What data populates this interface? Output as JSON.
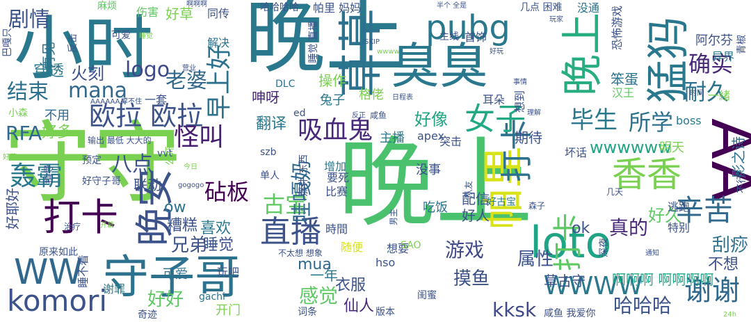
{
  "words": [
    {
      "text": "晚上",
      "color": "#2a788e",
      "vertical": false
    },
    {
      "text": "晚上",
      "color": "#4ac16d",
      "vertical": true
    },
    {
      "text": "小时",
      "color": "#2a788e",
      "vertical": false
    },
    {
      "text": "守守",
      "color": "#7ad151",
      "vertical": false
    },
    {
      "text": "AA",
      "color": "#440154",
      "vertical": true
    },
    {
      "text": "草草",
      "color": "#2c728e",
      "vertical": true
    },
    {
      "text": "臭臭",
      "color": "#2a788e",
      "vertical": false
    },
    {
      "text": "猛犸",
      "color": "#2a788e",
      "vertical": true
    },
    {
      "text": "晚上",
      "color": "#27ad81",
      "vertical": true
    },
    {
      "text": "守子哥",
      "color": "#2c728e",
      "vertical": false
    },
    {
      "text": "loto",
      "color": "#20a486",
      "vertical": false
    },
    {
      "text": "帕里",
      "color": "#d8e219",
      "vertical": true
    },
    {
      "text": "晚安",
      "color": "#3b528b",
      "vertical": true
    },
    {
      "text": "打卡",
      "color": "#440154",
      "vertical": false
    },
    {
      "text": "打卡",
      "color": "#2c728e",
      "vertical": true
    },
    {
      "text": "打卡",
      "color": "#5ec962",
      "vertical": true
    },
    {
      "text": "香香",
      "color": "#7ad151",
      "vertical": false
    },
    {
      "text": "pubg",
      "color": "#2a788e",
      "vertical": false
    },
    {
      "text": "WW",
      "color": "#31688e",
      "vertical": false
    },
    {
      "text": "komori",
      "color": "#3b528b",
      "vertical": false
    },
    {
      "text": "女子",
      "color": "#22a884",
      "vertical": false
    },
    {
      "text": "直播",
      "color": "#3b528b",
      "vertical": false
    },
    {
      "text": "吸血鬼",
      "color": "#482878",
      "vertical": false
    },
    {
      "text": "辛苦",
      "color": "#31688e",
      "vertical": false
    },
    {
      "text": "谢谢",
      "color": "#31688e",
      "vertical": false
    },
    {
      "text": "欧拉 欧拉",
      "color": "#3b528b",
      "vertical": false
    },
    {
      "text": "早上好",
      "color": "#2c728e",
      "vertical": true
    },
    {
      "text": "确实",
      "color": "#482878",
      "vertical": false
    },
    {
      "text": "耐久",
      "color": "#2c728e",
      "vertical": false
    },
    {
      "text": "毕生",
      "color": "#2a788e",
      "vertical": false
    },
    {
      "text": "所学",
      "color": "#2c728e",
      "vertical": false
    },
    {
      "text": "轰霸",
      "color": "#2a788e",
      "vertical": false
    },
    {
      "text": "剧情",
      "color": "#3b528b",
      "vertical": false
    },
    {
      "text": "结束",
      "color": "#2c728e",
      "vertical": false
    },
    {
      "text": "RFA",
      "color": "#31688e",
      "vertical": false
    },
    {
      "text": "好多",
      "color": "#7ad151",
      "vertical": false
    },
    {
      "text": "古宝",
      "color": "#5ec962",
      "vertical": false
    },
    {
      "text": "老婆",
      "color": "#31688e",
      "vertical": false
    },
    {
      "text": "mana",
      "color": "#31688e",
      "vertical": false
    },
    {
      "text": "logo",
      "color": "#3e4989",
      "vertical": false
    },
    {
      "text": "怪叫",
      "color": "#481f70",
      "vertical": false
    },
    {
      "text": "八点",
      "color": "#3b528b",
      "vertical": false
    },
    {
      "text": "砧板",
      "color": "#440154",
      "vertical": false
    },
    {
      "text": "哇嘎奶",
      "color": "#31688e",
      "vertical": true
    },
    {
      "text": "真的",
      "color": "#482878",
      "vertical": false
    },
    {
      "text": "好久",
      "color": "#5ec962",
      "vertical": false
    },
    {
      "text": "游戏",
      "color": "#3e4989",
      "vertical": false
    },
    {
      "text": "属性",
      "color": "#3b528b",
      "vertical": false
    },
    {
      "text": "感觉",
      "color": "#5ec962",
      "vertical": false
    },
    {
      "text": "wwwwww",
      "color": "#20a486",
      "vertical": false
    },
    {
      "text": "WWWW",
      "color": "#2a788e",
      "vertical": false
    },
    {
      "text": "kksk",
      "color": "#3e4989",
      "vertical": false
    },
    {
      "text": "哈哈哈",
      "color": "#3b528b",
      "vertical": false
    },
    {
      "text": "刮痧",
      "color": "#2c728e",
      "vertical": false
    },
    {
      "text": "不想",
      "color": "#3b528b",
      "vertical": false
    },
    {
      "text": "摸鱼",
      "color": "#3b528b",
      "vertical": false
    },
    {
      "text": "衣服",
      "color": "#3b528b",
      "vertical": false
    },
    {
      "text": "一年",
      "color": "#2a788e",
      "vertical": false
    },
    {
      "text": "mua",
      "color": "#31688e",
      "vertical": false
    },
    {
      "text": "仙人",
      "color": "#482878",
      "vertical": false
    },
    {
      "text": "兄弟",
      "color": "#3b528b",
      "vertical": false
    },
    {
      "text": "喜欢",
      "color": "#2a788e",
      "vertical": false
    },
    {
      "text": "糟糕",
      "color": "#3b528b",
      "vertical": false
    },
    {
      "text": "睡觉",
      "color": "#3b528b",
      "vertical": false
    },
    {
      "text": "好好",
      "color": "#5ec962",
      "vertical": false
    },
    {
      "text": "可爱",
      "color": "#2c728e",
      "vertical": false
    },
    {
      "text": "开门",
      "color": "#7ad151",
      "vertical": false
    },
    {
      "text": "gachi",
      "color": "#2c728e",
      "vertical": false
    },
    {
      "text": "玩吧",
      "color": "#3b528b",
      "vertical": false
    },
    {
      "text": "ow",
      "color": "#2c728e",
      "vertical": false
    },
    {
      "text": "联动",
      "color": "#3b528b",
      "vertical": false
    },
    {
      "text": "火刻",
      "color": "#3b528b",
      "vertical": false
    },
    {
      "text": "穿透",
      "color": "#2a788e",
      "vertical": false
    },
    {
      "text": "再见",
      "color": "#2c728e",
      "vertical": true
    },
    {
      "text": "不用",
      "color": "#31688e",
      "vertical": false
    },
    {
      "text": "翻译",
      "color": "#2a788e",
      "vertical": false
    },
    {
      "text": "呻呀",
      "color": "#482878",
      "vertical": false
    },
    {
      "text": "操作",
      "color": "#7ad151",
      "vertical": false
    },
    {
      "text": "兔子",
      "color": "#2a788e",
      "vertical": false
    },
    {
      "text": "格佬",
      "color": "#7ad151",
      "vertical": false
    },
    {
      "text": "好草",
      "color": "#7ad151",
      "vertical": false
    },
    {
      "text": "同传",
      "color": "#3b528b",
      "vertical": false
    },
    {
      "text": "解决",
      "color": "#2c728e",
      "vertical": false
    },
    {
      "text": "好像",
      "color": "#20a486",
      "vertical": false
    },
    {
      "text": "突击",
      "color": "#3b528b",
      "vertical": false
    },
    {
      "text": "期待",
      "color": "#3b528b",
      "vertical": false
    },
    {
      "text": "耳朵",
      "color": "#3b528b",
      "vertical": false
    },
    {
      "text": "apex",
      "color": "#3b528b",
      "vertical": false
    },
    {
      "text": "主播",
      "color": "#2a788e",
      "vertical": false
    },
    {
      "text": "增加",
      "color": "#2a788e",
      "vertical": false
    },
    {
      "text": "没事",
      "color": "#3b528b",
      "vertical": false
    },
    {
      "text": "吃饭",
      "color": "#2c728e",
      "vertical": false
    },
    {
      "text": "配信",
      "color": "#3b528b",
      "vertical": false
    },
    {
      "text": "好人",
      "color": "#3b528b",
      "vertical": false
    },
    {
      "text": "好古宝",
      "color": "#2a788e",
      "vertical": false
    },
    {
      "text": "比赛",
      "color": "#3b528b",
      "vertical": false
    },
    {
      "text": "要死",
      "color": "#3b528b",
      "vertical": false
    },
    {
      "text": "時間",
      "color": "#3b528b",
      "vertical": false
    },
    {
      "text": "随便",
      "color": "#d8e219",
      "vertical": false
    },
    {
      "text": "想要",
      "color": "#3b528b",
      "vertical": false
    },
    {
      "text": "啊啊啊 啊啊啊啊",
      "color": "#20a486",
      "vertical": false
    },
    {
      "text": "草古守",
      "color": "#3b528b",
      "vertical": false
    },
    {
      "text": "特别",
      "color": "#3b528b",
      "vertical": false
    },
    {
      "text": "逃跑",
      "color": "#3b528b",
      "vertical": false
    },
    {
      "text": "ok",
      "color": "#3b528b",
      "vertical": false
    },
    {
      "text": "笨蛋",
      "color": "#2c728e",
      "vertical": false
    },
    {
      "text": "汉王",
      "color": "#5ec962",
      "vertical": false
    },
    {
      "text": "阿尔芬",
      "color": "#3b528b",
      "vertical": false
    },
    {
      "text": "恐怖游戏",
      "color": "#3b528b",
      "vertical": true
    },
    {
      "text": "异界",
      "color": "#2a788e",
      "vertical": false
    },
    {
      "text": "boss",
      "color": "#2a788e",
      "vertical": false
    },
    {
      "text": "明天",
      "color": "#7ad151",
      "vertical": false
    },
    {
      "text": "影之诗",
      "color": "#2c728e",
      "vertical": true
    },
    {
      "text": "坏话",
      "color": "#3b528b",
      "vertical": false
    },
    {
      "text": "想到",
      "color": "#3b528b",
      "vertical": true
    },
    {
      "text": "一緒",
      "color": "#7ad151",
      "vertical": false
    },
    {
      "text": "首饰",
      "color": "#3b528b",
      "vertical": false
    },
    {
      "text": "主线",
      "color": "#3b528b",
      "vertical": false
    },
    {
      "text": "帕里 妈妈",
      "color": "#3b528b",
      "vertical": false
    },
    {
      "text": "哈哈哈哈",
      "color": "#3b528b",
      "vertical": false
    },
    {
      "text": "睡觉 直播",
      "color": "#3b528b",
      "vertical": true
    },
    {
      "text": "ed",
      "color": "#3b528b",
      "vertical": false
    },
    {
      "text": "DLC",
      "color": "#2c728e",
      "vertical": false
    },
    {
      "text": "伤害",
      "color": "#5ec962",
      "vertical": false
    },
    {
      "text": "麻烦",
      "color": "#5ec962",
      "vertical": false
    },
    {
      "text": "好耶好",
      "color": "#3b528b",
      "vertical": true
    },
    {
      "text": "谢罪",
      "color": "#2a788e",
      "vertical": false
    },
    {
      "text": "睡不着",
      "color": "#3b528b",
      "vertical": true
    },
    {
      "text": "原来如此",
      "color": "#3b528b",
      "vertical": false
    },
    {
      "text": "奇迹",
      "color": "#3b528b",
      "vertical": false
    },
    {
      "text": "词条",
      "color": "#3b528b",
      "vertical": false
    },
    {
      "text": "版本",
      "color": "#3b528b",
      "vertical": false
    },
    {
      "text": "咸鱼 我爱你",
      "color": "#3b528b",
      "vertical": false
    },
    {
      "text": "深夜",
      "color": "#3b528b",
      "vertical": true
    },
    {
      "text": "闺蜜",
      "color": "#3b528b",
      "vertical": false
    },
    {
      "text": "hso",
      "color": "#3b528b",
      "vertical": false
    },
    {
      "text": "SAO",
      "color": "#7ad151",
      "vertical": false
    },
    {
      "text": "不太想 想象",
      "color": "#3b528b",
      "vertical": false
    },
    {
      "text": "单人",
      "color": "#3b528b",
      "vertical": false
    },
    {
      "text": "szb",
      "color": "#3b528b",
      "vertical": false
    },
    {
      "text": "预定",
      "color": "#3b528b",
      "vertical": false
    },
    {
      "text": "好守子哥",
      "color": "#3b528b",
      "vertical": false
    },
    {
      "text": "指导",
      "color": "#3b528b",
      "vertical": true
    },
    {
      "text": "vvt",
      "color": "#3b528b",
      "vertical": false
    },
    {
      "text": "一套",
      "color": "#3b528b",
      "vertical": false
    },
    {
      "text": "输出 最低 大大的",
      "color": "#3b528b",
      "vertical": false
    },
    {
      "text": "治疗",
      "color": "#3b528b",
      "vertical": false
    },
    {
      "text": "小森",
      "color": "#7ad151",
      "vertical": false
    },
    {
      "text": "巴嘎只",
      "color": "#3b528b",
      "vertical": true
    },
    {
      "text": "反击",
      "color": "#3b528b",
      "vertical": true
    },
    {
      "text": "可爱",
      "color": "#3b528b",
      "vertical": false
    },
    {
      "text": "没通",
      "color": "#2c728e",
      "vertical": false
    },
    {
      "text": "几点 困难",
      "color": "#3b528b",
      "vertical": false
    },
    {
      "text": "咸鱼",
      "color": "#3b528b",
      "vertical": false
    },
    {
      "text": "青椒",
      "color": "#3b528b",
      "vertical": true
    },
    {
      "text": "不行",
      "color": "#3b528b",
      "vertical": true
    },
    {
      "text": "几天",
      "color": "#3b528b",
      "vertical": false
    },
    {
      "text": "森子",
      "color": "#3b528b",
      "vertical": false
    },
    {
      "text": "公开",
      "color": "#7ad151",
      "vertical": true
    },
    {
      "text": "那件 东西",
      "color": "#3b528b",
      "vertical": true
    },
    {
      "text": "gogogo",
      "color": "#3b528b",
      "vertical": false
    },
    {
      "text": "SKIP",
      "color": "#3b528b",
      "vertical": false
    },
    {
      "text": "wwww",
      "color": "#7ad151",
      "vertical": false
    },
    {
      "text": "好玩",
      "color": "#3b528b",
      "vertical": false
    },
    {
      "text": "半个 全是",
      "color": "#3b528b",
      "vertical": false
    },
    {
      "text": "啊啊啊",
      "color": "#3b528b",
      "vertical": false
    },
    {
      "text": "营业",
      "color": "#3b528b",
      "vertical": false
    },
    {
      "text": "事情",
      "color": "#3b528b",
      "vertical": false
    },
    {
      "text": "日程表",
      "color": "#3b528b",
      "vertical": false
    },
    {
      "text": "反正",
      "color": "#3b528b",
      "vertical": false
    },
    {
      "text": "时间",
      "color": "#3b528b",
      "vertical": false
    },
    {
      "text": "24h",
      "color": "#7ad151",
      "vertical": false
    },
    {
      "text": "通知",
      "color": "#3b528b",
      "vertical": false
    },
    {
      "text": "今日",
      "color": "#7ad151",
      "vertical": false
    },
    {
      "text": "开幕",
      "color": "#7ad151",
      "vertical": false
    },
    {
      "text": "好菜",
      "color": "#7ad151",
      "vertical": false
    },
    {
      "text": "睡觉",
      "color": "#7ad151",
      "vertical": false
    },
    {
      "text": "AAAAAAA",
      "color": "#3b528b",
      "vertical": false
    },
    {
      "text": "撑不住",
      "color": "#3b528b",
      "vertical": false
    },
    {
      "text": "队友",
      "color": "#3b528b",
      "vertical": true
    },
    {
      "text": "男主",
      "color": "#3b528b",
      "vertical": true
    },
    {
      "text": "理解",
      "color": "#3b528b",
      "vertical": false
    },
    {
      "text": "玩家",
      "color": "#3b528b",
      "vertical": false
    }
  ]
}
